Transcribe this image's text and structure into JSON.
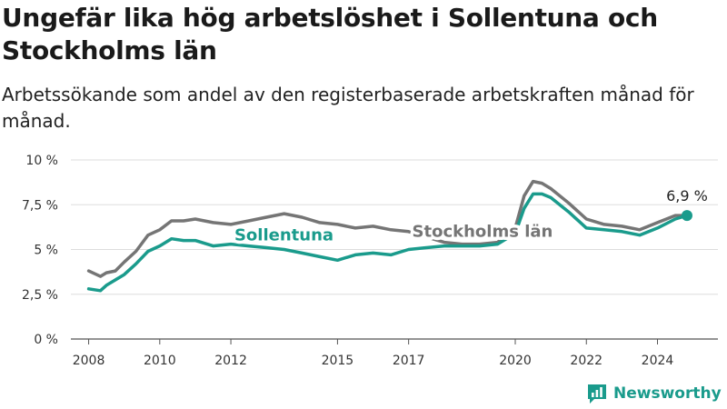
{
  "header": {
    "title": "Ungefär lika hög arbetslöshet i Sollentuna och Stockholms län",
    "subtitle": "Arbetssökande som andel av den registerbaserade arbetskraften månad för månad."
  },
  "brand": {
    "name": "Newsworthy",
    "icon": "newsworthy-logo-icon",
    "color": "#1a9b8c"
  },
  "chart_data": {
    "type": "line",
    "grid": true,
    "ylim": [
      0,
      10
    ],
    "xlim": [
      2007.5,
      2025.7
    ],
    "y_ticks": [
      {
        "value": 0,
        "label": "0 %"
      },
      {
        "value": 2.5,
        "label": "2,5 %"
      },
      {
        "value": 5,
        "label": "5 %"
      },
      {
        "value": 7.5,
        "label": "7,5 %"
      },
      {
        "value": 10,
        "label": "10 %"
      }
    ],
    "x_ticks": [
      {
        "value": 2008,
        "label": "2008"
      },
      {
        "value": 2010,
        "label": "2010"
      },
      {
        "value": 2012,
        "label": "2012"
      },
      {
        "value": 2015,
        "label": "2015"
      },
      {
        "value": 2017,
        "label": "2017"
      },
      {
        "value": 2020,
        "label": "2020"
      },
      {
        "value": 2022,
        "label": "2022"
      },
      {
        "value": 2024,
        "label": "2024"
      }
    ],
    "series": [
      {
        "name": "Stockholms län",
        "color": "#757575",
        "x": [
          2008.0,
          2008.33,
          2008.5,
          2008.75,
          2009.0,
          2009.33,
          2009.67,
          2010.0,
          2010.33,
          2010.67,
          2011.0,
          2011.5,
          2012.0,
          2012.5,
          2013.0,
          2013.5,
          2014.0,
          2014.5,
          2015.0,
          2015.5,
          2016.0,
          2016.5,
          2017.0,
          2017.5,
          2018.0,
          2018.5,
          2019.0,
          2019.5,
          2020.0,
          2020.25,
          2020.5,
          2020.75,
          2021.0,
          2021.5,
          2022.0,
          2022.5,
          2023.0,
          2023.5,
          2024.0,
          2024.5,
          2024.83
        ],
        "values": [
          3.8,
          3.5,
          3.7,
          3.8,
          4.3,
          4.9,
          5.8,
          6.1,
          6.6,
          6.6,
          6.7,
          6.5,
          6.4,
          6.6,
          6.8,
          7.0,
          6.8,
          6.5,
          6.4,
          6.2,
          6.3,
          6.1,
          6.0,
          5.7,
          5.4,
          5.3,
          5.3,
          5.4,
          6.2,
          8.0,
          8.8,
          8.7,
          8.4,
          7.6,
          6.7,
          6.4,
          6.3,
          6.1,
          6.5,
          6.9,
          6.9
        ]
      },
      {
        "name": "Sollentuna",
        "color": "#1a9b8c",
        "x": [
          2008.0,
          2008.33,
          2008.5,
          2008.75,
          2009.0,
          2009.33,
          2009.67,
          2010.0,
          2010.33,
          2010.67,
          2011.0,
          2011.5,
          2012.0,
          2012.5,
          2013.0,
          2013.5,
          2014.0,
          2014.5,
          2015.0,
          2015.5,
          2016.0,
          2016.5,
          2017.0,
          2017.5,
          2018.0,
          2018.5,
          2019.0,
          2019.5,
          2020.0,
          2020.25,
          2020.5,
          2020.75,
          2021.0,
          2021.5,
          2022.0,
          2022.5,
          2023.0,
          2023.5,
          2024.0,
          2024.5,
          2024.83
        ],
        "values": [
          2.8,
          2.7,
          3.0,
          3.3,
          3.6,
          4.2,
          4.9,
          5.2,
          5.6,
          5.5,
          5.5,
          5.2,
          5.3,
          5.2,
          5.1,
          5.0,
          4.8,
          4.6,
          4.4,
          4.7,
          4.8,
          4.7,
          5.0,
          5.1,
          5.2,
          5.2,
          5.2,
          5.3,
          5.9,
          7.3,
          8.1,
          8.1,
          7.9,
          7.1,
          6.2,
          6.1,
          6.0,
          5.8,
          6.2,
          6.7,
          6.9
        ]
      }
    ],
    "series_labels": [
      {
        "series": "Sollentuna",
        "text": "Sollentuna",
        "x": 2012.1,
        "y": 5.5
      },
      {
        "series": "Stockholms län",
        "text": "Stockholms län",
        "x": 2017.1,
        "y": 5.7
      }
    ],
    "annotation": {
      "text": "6,9 %",
      "x": 2024.83,
      "y": 6.9
    }
  }
}
